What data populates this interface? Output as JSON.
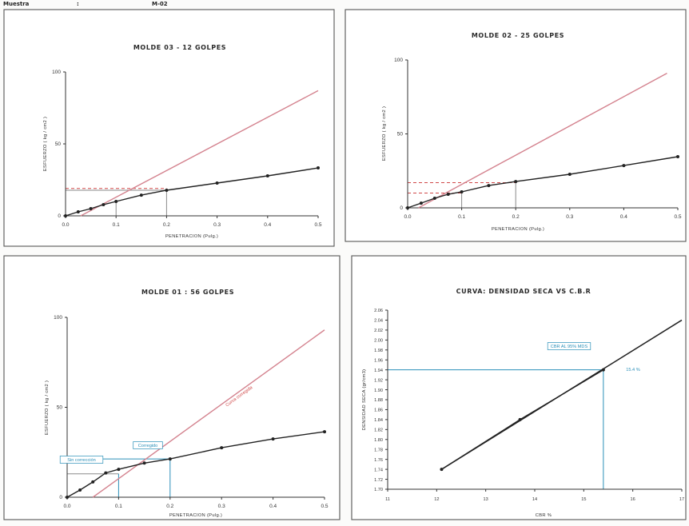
{
  "header": {
    "label": "Muestra",
    "colon": ":",
    "value": "M-02"
  },
  "colors": {
    "curve": "#222222",
    "tangent": "#d4838f",
    "guide_red": "#d04848",
    "guide_gray": "#8a8a8a",
    "guide_blue": "#2a8fb8",
    "frame": "#555555"
  },
  "chart_data": [
    {
      "type": "line",
      "title": "MOLDE 03 - 12 GOLPES",
      "xlabel": "PENETRACION (Pulg.)",
      "ylabel": "ESFUERZO ( kg / cm2 )",
      "xlim": [
        0,
        0.5
      ],
      "ylim": [
        0,
        100
      ],
      "xticks": [
        "0.0",
        "0.1",
        "0.2",
        "0.3",
        "0.4",
        "0.5"
      ],
      "yticks": [
        "0",
        "50",
        "100"
      ],
      "series": [
        {
          "x": [
            0,
            0.025,
            0.05,
            0.075,
            0.1,
            0.15,
            0.2,
            0.3,
            0.4,
            0.5
          ],
          "y": [
            0,
            2.8,
            5.0,
            7.8,
            10.0,
            14.4,
            17.8,
            22.8,
            27.8,
            33.3
          ]
        }
      ],
      "tangent": {
        "x": [
          0.03,
          0.5
        ],
        "y": [
          0,
          87
        ]
      },
      "guides": [
        {
          "dir": "h",
          "at": 19,
          "to": 0.2,
          "color": "#d04848",
          "style": "dashed"
        },
        {
          "dir": "h",
          "at": 17.8,
          "to": 0.2,
          "color": "#8a8a8a",
          "style": "solid"
        },
        {
          "dir": "v",
          "at": 0.2,
          "to": 17.8,
          "color": "#8a8a8a",
          "style": "solid"
        },
        {
          "dir": "v",
          "at": 0.1,
          "to": 10,
          "color": "#8a8a8a",
          "style": "solid"
        }
      ],
      "annotations": []
    },
    {
      "type": "line",
      "title": "MOLDE 02 - 25 GOLPES",
      "xlabel": "PENETRACION (Pulg.)",
      "ylabel": "ESFUERZO ( kg / cm2 )",
      "xlim": [
        0,
        0.5
      ],
      "ylim": [
        0,
        100
      ],
      "xticks": [
        "0.0",
        "0.1",
        "0.2",
        "0.3",
        "0.4",
        "0.5"
      ],
      "yticks": [
        "0",
        "50",
        "100"
      ],
      "series": [
        {
          "x": [
            0,
            0.025,
            0.05,
            0.075,
            0.1,
            0.15,
            0.2,
            0.3,
            0.4,
            0.5
          ],
          "y": [
            0,
            3.2,
            6.5,
            9.2,
            10.8,
            15.1,
            17.8,
            22.7,
            28.6,
            34.6
          ]
        }
      ],
      "tangent": {
        "x": [
          0.02,
          0.48
        ],
        "y": [
          0,
          91
        ]
      },
      "guides": [
        {
          "dir": "h",
          "at": 17,
          "to": 0.2,
          "color": "#d04848",
          "style": "dashed"
        },
        {
          "dir": "h",
          "at": 10,
          "to": 0.1,
          "color": "#d04848",
          "style": "dashed"
        },
        {
          "dir": "v",
          "at": 0.2,
          "to": 17.8,
          "color": "#8a8a8a",
          "style": "solid"
        },
        {
          "dir": "v",
          "at": 0.1,
          "to": 10.8,
          "color": "#8a8a8a",
          "style": "solid"
        }
      ],
      "annotations": []
    },
    {
      "type": "line",
      "title": "MOLDE 01 : 56 GOLPES",
      "xlabel": "PENETRACION (Pulg.)",
      "ylabel": "ESFUERZO ( kg / cm2 )",
      "xlim": [
        0,
        0.5
      ],
      "ylim": [
        0,
        100
      ],
      "xticks": [
        "0.0",
        "0.1",
        "0.2",
        "0.3",
        "0.4",
        "0.5"
      ],
      "yticks": [
        "0",
        "50",
        "100"
      ],
      "series": [
        {
          "x": [
            0,
            0.025,
            0.05,
            0.075,
            0.1,
            0.15,
            0.2,
            0.3,
            0.4,
            0.5
          ],
          "y": [
            0,
            4.0,
            8.5,
            13.5,
            15.5,
            19.0,
            21.3,
            27.5,
            32.4,
            36.4
          ]
        }
      ],
      "tangent": {
        "x": [
          0.05,
          0.5
        ],
        "y": [
          0,
          93
        ]
      },
      "guides": [
        {
          "dir": "h",
          "at": 21.3,
          "to": 0.2,
          "color": "#2a8fb8",
          "style": "solid"
        },
        {
          "dir": "h",
          "at": 13,
          "to": 0.1,
          "color": "#8a8a8a",
          "style": "solid"
        },
        {
          "dir": "v",
          "at": 0.1,
          "to": 13,
          "color": "#2a8fb8",
          "style": "solid"
        },
        {
          "dir": "v",
          "at": 0.2,
          "to": 21.3,
          "color": "#2a8fb8",
          "style": "solid"
        }
      ],
      "annotations": [
        {
          "text": "Sin corrección",
          "color": "#2a8fb8"
        },
        {
          "text": "Corregido",
          "color": "#2a8fb8"
        },
        {
          "text": "Curva corregida",
          "color": "#d04848"
        }
      ]
    },
    {
      "type": "line",
      "title": "CURVA: DENSIDAD SECA VS C.B.R",
      "xlabel": "CBR %",
      "ylabel": "DENSIDAD SECA (gr/cm3)",
      "xlim": [
        11,
        17
      ],
      "ylim": [
        1.7,
        2.06
      ],
      "xticks": [
        "11",
        "12",
        "13",
        "14",
        "15",
        "16",
        "17"
      ],
      "yticks": [
        "1.70",
        "1.72",
        "1.74",
        "1.76",
        "1.78",
        "1.80",
        "1.82",
        "1.84",
        "1.86",
        "1.88",
        "1.90",
        "1.92",
        "1.94",
        "1.96",
        "1.98",
        "2.00",
        "2.02",
        "2.04",
        "2.06"
      ],
      "series": [
        {
          "x": [
            12.1,
            13.7,
            15.4
          ],
          "y": [
            1.74,
            1.84,
            1.94
          ]
        }
      ],
      "trend": {
        "x": [
          12.1,
          17
        ],
        "y": [
          1.74,
          2.04
        ]
      },
      "guides": [
        {
          "dir": "h",
          "at": 1.94,
          "to": 15.4,
          "color": "#2a8fb8",
          "style": "solid"
        },
        {
          "dir": "v",
          "at": 15.4,
          "to": 1.94,
          "color": "#2a8fb8",
          "style": "solid"
        }
      ],
      "annotations": [
        {
          "text": "CBR AL 95% MDS",
          "color": "#2a8fb8"
        },
        {
          "text": "15.4 %",
          "color": "#2a8fb8"
        }
      ]
    }
  ]
}
